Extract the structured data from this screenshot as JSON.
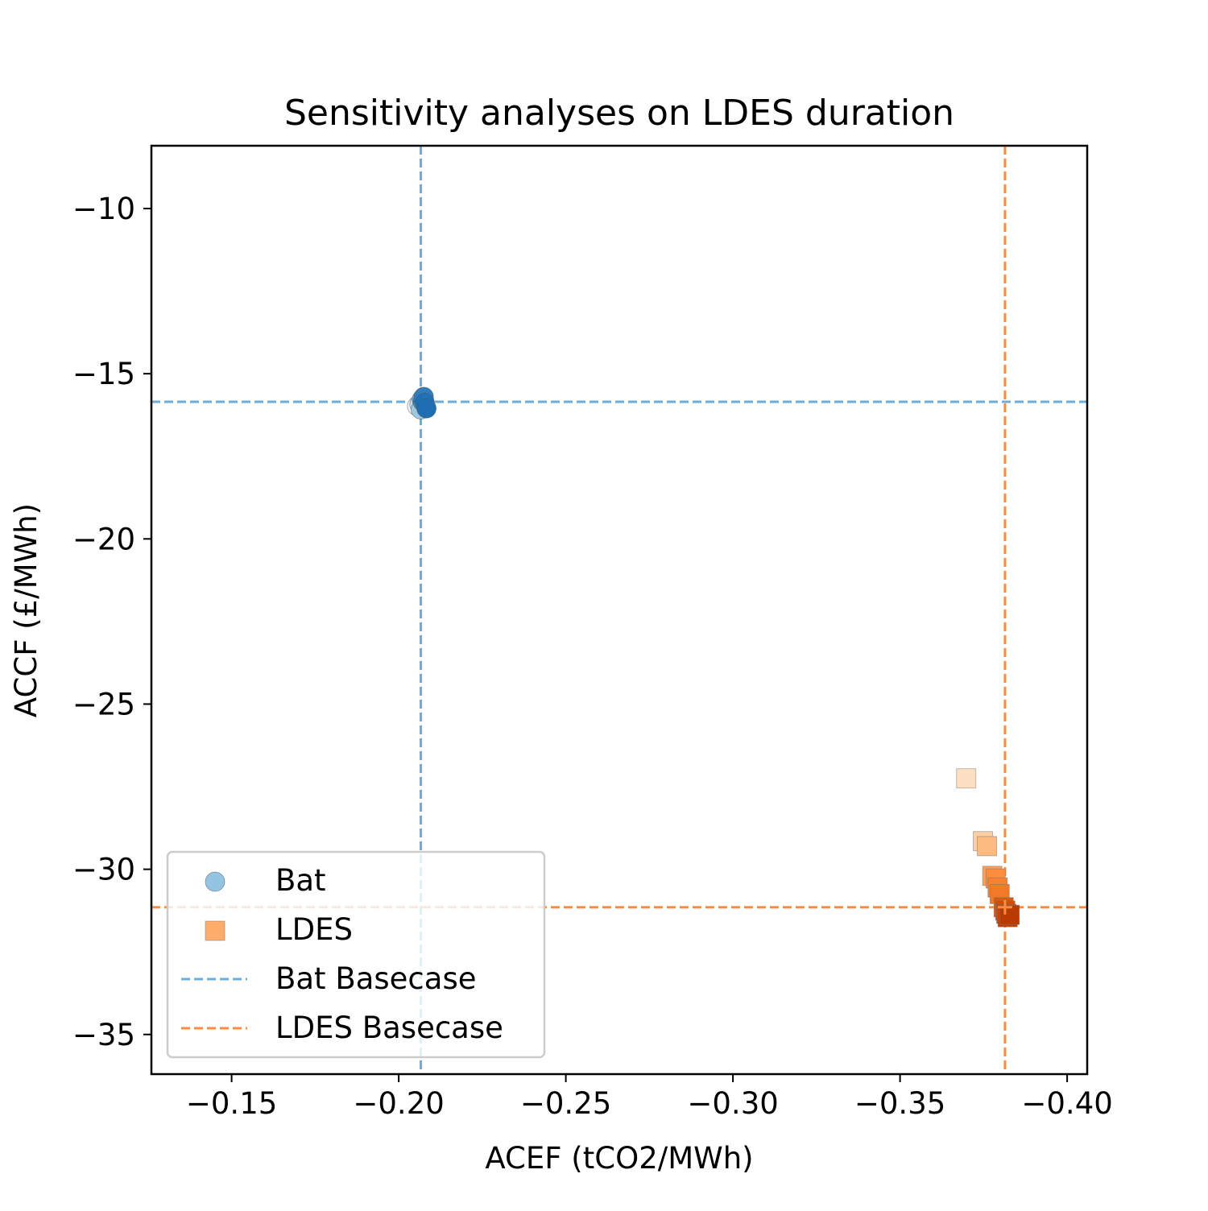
{
  "chart_data": {
    "type": "scatter",
    "title": "Sensitivity analyses on LDES duration",
    "xlabel": "ACEF (tCO2/MWh)",
    "ylabel": "ACCF (£/MWh)",
    "xlim": [
      -0.126,
      -0.406
    ],
    "ylim": [
      -36.2,
      -8.1
    ],
    "x_inverted": true,
    "xticks": [
      -0.15,
      -0.2,
      -0.25,
      -0.3,
      -0.35,
      -0.4
    ],
    "xtick_labels": [
      "−0.15",
      "−0.20",
      "−0.25",
      "−0.30",
      "−0.35",
      "−0.40"
    ],
    "yticks": [
      -10,
      -15,
      -20,
      -25,
      -30,
      -35
    ],
    "ytick_labels": [
      "−10",
      "−15",
      "−20",
      "−25",
      "−30",
      "−35"
    ],
    "grid": false,
    "legend_position": "lower-left",
    "series": [
      {
        "name": "Bat",
        "marker": "circle",
        "legend_color": "#93c4e2",
        "points": [
          {
            "x": -0.2055,
            "y": -15.98,
            "color": "#eef4fb"
          },
          {
            "x": -0.2062,
            "y": -15.92,
            "color": "#c6dcef"
          },
          {
            "x": -0.2066,
            "y": -16.08,
            "color": "#9ecae1"
          },
          {
            "x": -0.2069,
            "y": -15.78,
            "color": "#6baed6"
          },
          {
            "x": -0.2072,
            "y": -15.85,
            "color": "#4292c6"
          },
          {
            "x": -0.2075,
            "y": -15.7,
            "color": "#2f7dbd"
          },
          {
            "x": -0.2078,
            "y": -15.88,
            "color": "#2171b5"
          },
          {
            "x": -0.2083,
            "y": -16.05,
            "color": "#1f6db2"
          }
        ]
      },
      {
        "name": "LDES",
        "marker": "square",
        "legend_color": "#fdac6a",
        "points": [
          {
            "x": -0.3698,
            "y": -27.25,
            "color": "#fde0c2"
          },
          {
            "x": -0.3748,
            "y": -29.15,
            "color": "#fdd0a2"
          },
          {
            "x": -0.376,
            "y": -29.3,
            "color": "#fdba81"
          },
          {
            "x": -0.3776,
            "y": -30.2,
            "color": "#fda058"
          },
          {
            "x": -0.3786,
            "y": -30.28,
            "color": "#fd8d3c"
          },
          {
            "x": -0.3792,
            "y": -30.55,
            "color": "#f8822f"
          },
          {
            "x": -0.3798,
            "y": -30.75,
            "color": "#f07a2a"
          },
          {
            "x": -0.381,
            "y": -31.15,
            "color": "#e6550d"
          },
          {
            "x": -0.3815,
            "y": -31.25,
            "color": "#d94801"
          },
          {
            "x": -0.3818,
            "y": -31.35,
            "color": "#cc4a02"
          },
          {
            "x": -0.3822,
            "y": -31.45,
            "color": "#c44103"
          },
          {
            "x": -0.3828,
            "y": -31.38,
            "color": "#b83c02"
          }
        ]
      }
    ],
    "reference_lines": [
      {
        "name": "Bat Basecase",
        "x": -0.2066,
        "y": -15.85,
        "color": "#6baed6",
        "style": "dashed"
      },
      {
        "name": "LDES Basecase",
        "x": -0.3814,
        "y": -31.15,
        "color": "#fd8d3c",
        "style": "dashed"
      }
    ],
    "basecase_markers": [
      {
        "series": "Bat",
        "x": -0.2066,
        "y": -15.85,
        "color": "#1f6db2"
      },
      {
        "series": "LDES",
        "x": -0.3814,
        "y": -31.15,
        "color": "#fd8d3c"
      }
    ]
  }
}
